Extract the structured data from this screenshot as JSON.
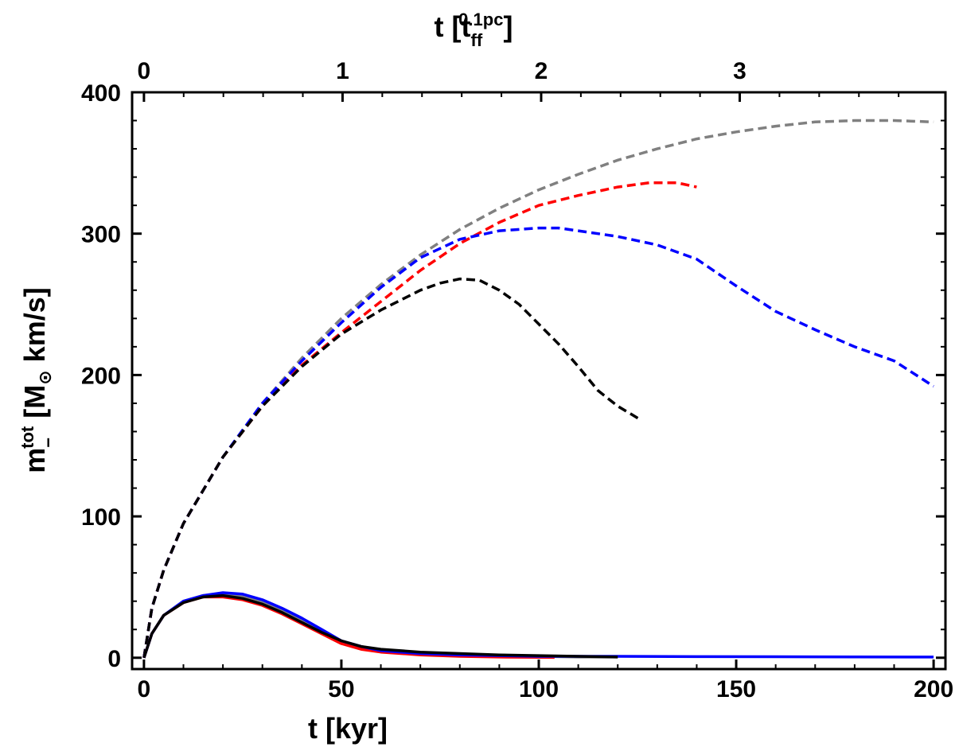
{
  "chart_data": {
    "type": "line",
    "xlabel": "t [kyr]",
    "xlabel_top": {
      "prefix": "t [t",
      "sub": "ff",
      "sup": "0.1pc",
      "suffix": "]"
    },
    "ylabel": {
      "base": "m",
      "sub": "−",
      "sup": "tot",
      "suffix": " [M",
      "sun": "⊙",
      "unit": " km/s]"
    },
    "xlim": [
      -3,
      203
    ],
    "ylim": [
      -8,
      400
    ],
    "x_ticks": [
      0,
      50,
      100,
      150,
      200
    ],
    "x_tick_labels": [
      "0",
      "50",
      "100",
      "150",
      "200"
    ],
    "top_ticks": [
      0,
      50.3,
      100.6,
      150.9
    ],
    "top_tick_labels": [
      "0",
      "1",
      "2",
      "3"
    ],
    "y_ticks": [
      0,
      100,
      200,
      300,
      400
    ],
    "y_tick_labels": [
      "0",
      "100",
      "200",
      "300",
      "400"
    ],
    "series": [
      {
        "name": "gray-dashed",
        "color": "#808080",
        "dash": true,
        "x": [
          0,
          2,
          5,
          10,
          20,
          30,
          40,
          50,
          60,
          70,
          80,
          90,
          100,
          110,
          120,
          130,
          140,
          150,
          160,
          170,
          180,
          190,
          200
        ],
        "y": [
          0,
          35,
          62,
          95,
          142,
          180,
          212,
          240,
          264,
          285,
          303,
          318,
          331,
          342,
          352,
          360,
          367,
          372,
          376,
          379,
          380,
          380,
          379
        ]
      },
      {
        "name": "red-dashed",
        "color": "#ff0000",
        "dash": true,
        "x": [
          0,
          2,
          5,
          10,
          20,
          30,
          40,
          50,
          60,
          70,
          80,
          90,
          100,
          110,
          120,
          128,
          135,
          140
        ],
        "y": [
          0,
          35,
          62,
          95,
          142,
          178,
          207,
          230,
          252,
          274,
          293,
          308,
          320,
          327,
          333,
          336,
          336,
          333
        ]
      },
      {
        "name": "blue-dashed",
        "color": "#0000ff",
        "dash": true,
        "x": [
          0,
          2,
          5,
          10,
          20,
          30,
          40,
          50,
          60,
          70,
          80,
          90,
          100,
          105,
          110,
          120,
          130,
          140,
          150,
          160,
          170,
          180,
          190,
          200
        ],
        "y": [
          0,
          35,
          62,
          95,
          142,
          180,
          210,
          237,
          262,
          283,
          296,
          302,
          304,
          304,
          302,
          298,
          292,
          282,
          263,
          245,
          232,
          220,
          210,
          192
        ]
      },
      {
        "name": "black-dashed",
        "color": "#000000",
        "dash": true,
        "x": [
          0,
          2,
          5,
          10,
          20,
          30,
          40,
          50,
          60,
          70,
          75,
          80,
          85,
          90,
          95,
          100,
          105,
          110,
          115,
          120,
          126
        ],
        "y": [
          0,
          35,
          62,
          95,
          142,
          178,
          206,
          229,
          246,
          260,
          265,
          268,
          267,
          260,
          250,
          236,
          222,
          206,
          189,
          178,
          168
        ]
      },
      {
        "name": "gray-solid",
        "color": "#808080",
        "dash": false,
        "x": [
          0,
          2,
          5,
          10,
          15,
          20,
          25,
          30,
          35,
          40,
          45,
          50,
          55,
          60,
          70,
          80,
          90,
          100,
          110,
          120
        ],
        "y": [
          0,
          17,
          30,
          40,
          44,
          45,
          44,
          40,
          34,
          27,
          19,
          12,
          8,
          5,
          3,
          2,
          1,
          1,
          0.5,
          0.5
        ]
      },
      {
        "name": "red-solid",
        "color": "#ff0000",
        "dash": false,
        "x": [
          0,
          2,
          5,
          10,
          15,
          20,
          25,
          30,
          35,
          40,
          45,
          50,
          55,
          60,
          70,
          80,
          90,
          100,
          104
        ],
        "y": [
          0,
          17,
          30,
          39,
          43,
          43,
          41,
          37,
          31,
          24,
          17,
          10,
          6,
          4,
          2,
          1,
          0.5,
          0.3,
          0.2
        ]
      },
      {
        "name": "blue-solid",
        "color": "#0000ff",
        "dash": false,
        "x": [
          0,
          2,
          5,
          10,
          15,
          20,
          25,
          30,
          35,
          40,
          45,
          50,
          55,
          60,
          70,
          80,
          90,
          100,
          120,
          140,
          160,
          180,
          200
        ],
        "y": [
          0,
          17,
          30,
          40,
          44,
          46,
          45,
          41,
          35,
          28,
          20,
          12,
          8,
          5,
          3,
          2,
          1.5,
          1,
          1,
          0.8,
          0.7,
          0.6,
          0.5
        ]
      },
      {
        "name": "black-solid",
        "color": "#000000",
        "dash": false,
        "x": [
          0,
          2,
          5,
          10,
          15,
          20,
          25,
          30,
          35,
          40,
          45,
          50,
          55,
          60,
          70,
          80,
          90,
          100,
          110,
          120
        ],
        "y": [
          0,
          17,
          30,
          39,
          43,
          44,
          42,
          38,
          32,
          25,
          18,
          12,
          8,
          6,
          4,
          3,
          2,
          1.5,
          1,
          0.5
        ]
      }
    ]
  }
}
